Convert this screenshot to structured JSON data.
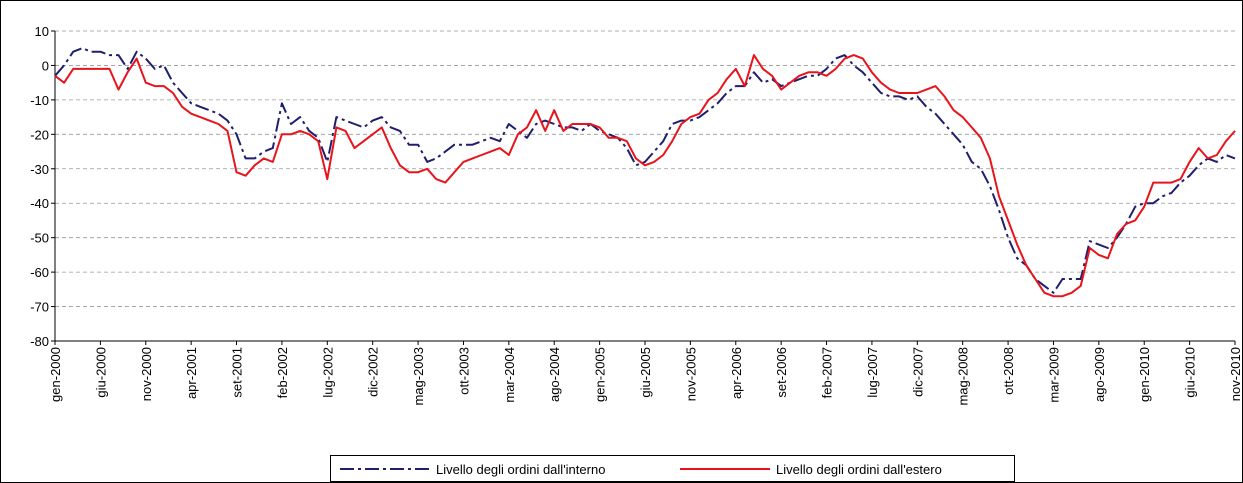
{
  "chart_data": {
    "type": "line",
    "categories": [
      "gen-2000",
      null,
      null,
      null,
      null,
      "giu-2000",
      null,
      null,
      null,
      null,
      "nov-2000",
      null,
      null,
      null,
      null,
      "apr-2001",
      null,
      null,
      null,
      null,
      "set-2001",
      null,
      null,
      null,
      null,
      "feb-2002",
      null,
      null,
      null,
      null,
      "lug-2002",
      null,
      null,
      null,
      null,
      "dic-2002",
      null,
      null,
      null,
      null,
      "mag-2003",
      null,
      null,
      null,
      null,
      "ott-2003",
      null,
      null,
      null,
      null,
      "mar-2004",
      null,
      null,
      null,
      null,
      "ago-2004",
      null,
      null,
      null,
      null,
      "gen-2005",
      null,
      null,
      null,
      null,
      "giu-2005",
      null,
      null,
      null,
      null,
      "nov-2005",
      null,
      null,
      null,
      null,
      "apr-2006",
      null,
      null,
      null,
      null,
      "set-2006",
      null,
      null,
      null,
      null,
      "feb-2007",
      null,
      null,
      null,
      null,
      "lug-2007",
      null,
      null,
      null,
      null,
      "dic-2007",
      null,
      null,
      null,
      null,
      "mag-2008",
      null,
      null,
      null,
      null,
      "ott-2008",
      null,
      null,
      null,
      null,
      "mar-2009",
      null,
      null,
      null,
      null,
      "ago-2009",
      null,
      null,
      null,
      null,
      "gen-2010",
      null,
      null,
      null,
      null,
      "giu-2010",
      null,
      null,
      null,
      null,
      "nov-2010"
    ],
    "series": [
      {
        "name": "Livello degli ordini dall'interno",
        "color": "#1f1f6e",
        "dash": true,
        "values": [
          -3,
          0,
          4,
          5,
          4,
          4,
          3,
          3,
          -1,
          4,
          2,
          -1,
          0,
          -5,
          -8,
          -11,
          -12,
          -13,
          -14,
          -16,
          -20,
          -27,
          -27,
          -25,
          -24,
          -11,
          -17,
          -15,
          -19,
          -21,
          -28,
          -15,
          -16,
          -17,
          -18,
          -16,
          -15,
          -18,
          -19,
          -23,
          -23,
          -28,
          -27,
          -25,
          -23,
          -23,
          -23,
          -22,
          -21,
          -22,
          -17,
          -19,
          -21,
          -17,
          -16,
          -17,
          -18,
          -18,
          -19,
          -17,
          -19,
          -20,
          -21,
          -24,
          -29,
          -28,
          -25,
          -22,
          -17,
          -16,
          -16,
          -15,
          -13,
          -11,
          -8,
          -6,
          -6,
          -2,
          -5,
          -4,
          -6,
          -5,
          -4,
          -3,
          -3,
          -1,
          2,
          3,
          0,
          -2,
          -5,
          -8,
          -9,
          -9,
          -10,
          -9,
          -12,
          -14,
          -17,
          -20,
          -23,
          -28,
          -30,
          -35,
          -42,
          -50,
          -56,
          -58,
          -62,
          -64,
          -66,
          -62,
          -62,
          -62,
          -51,
          -52,
          -53,
          -50,
          -46,
          -41,
          -40,
          -40,
          -38,
          -37,
          -34,
          -32,
          -29,
          -27,
          -28,
          -26,
          -27
        ]
      },
      {
        "name": "Livello degli ordini dall'estero",
        "color": "#e8141c",
        "dash": false,
        "values": [
          -3,
          -5,
          -1,
          -1,
          -1,
          -1,
          -1,
          -7,
          -2,
          2,
          -5,
          -6,
          -6,
          -8,
          -12,
          -14,
          -15,
          -16,
          -17,
          -19,
          -31,
          -32,
          -29,
          -27,
          -28,
          -20,
          -20,
          -19,
          -20,
          -22,
          -33,
          -18,
          -19,
          -24,
          -22,
          -20,
          -18,
          -24,
          -29,
          -31,
          -31,
          -30,
          -33,
          -34,
          -31,
          -28,
          -27,
          -26,
          -25,
          -24,
          -26,
          -20,
          -18,
          -13,
          -19,
          -13,
          -19,
          -17,
          -17,
          -17,
          -18,
          -21,
          -21,
          -22,
          -27,
          -29,
          -28,
          -26,
          -22,
          -17,
          -15,
          -14,
          -10,
          -8,
          -4,
          -1,
          -6,
          3,
          -1,
          -3,
          -7,
          -5,
          -3,
          -2,
          -2,
          -3,
          -1,
          2,
          3,
          2,
          -2,
          -5,
          -7,
          -8,
          -8,
          -8,
          -7,
          -6,
          -9,
          -13,
          -15,
          -18,
          -21,
          -27,
          -38,
          -45,
          -52,
          -58,
          -62,
          -66,
          -67,
          -67,
          -66,
          -64,
          -53,
          -55,
          -56,
          -49,
          -46,
          -45,
          -41,
          -34,
          -34,
          -34,
          -33,
          -28,
          -24,
          -27,
          -26,
          -22,
          -19
        ]
      }
    ],
    "ylim": [
      -80,
      10
    ],
    "yticks": [
      10,
      0,
      -10,
      -20,
      -30,
      -40,
      -50,
      -60,
      -70,
      -80
    ],
    "grid": true
  }
}
